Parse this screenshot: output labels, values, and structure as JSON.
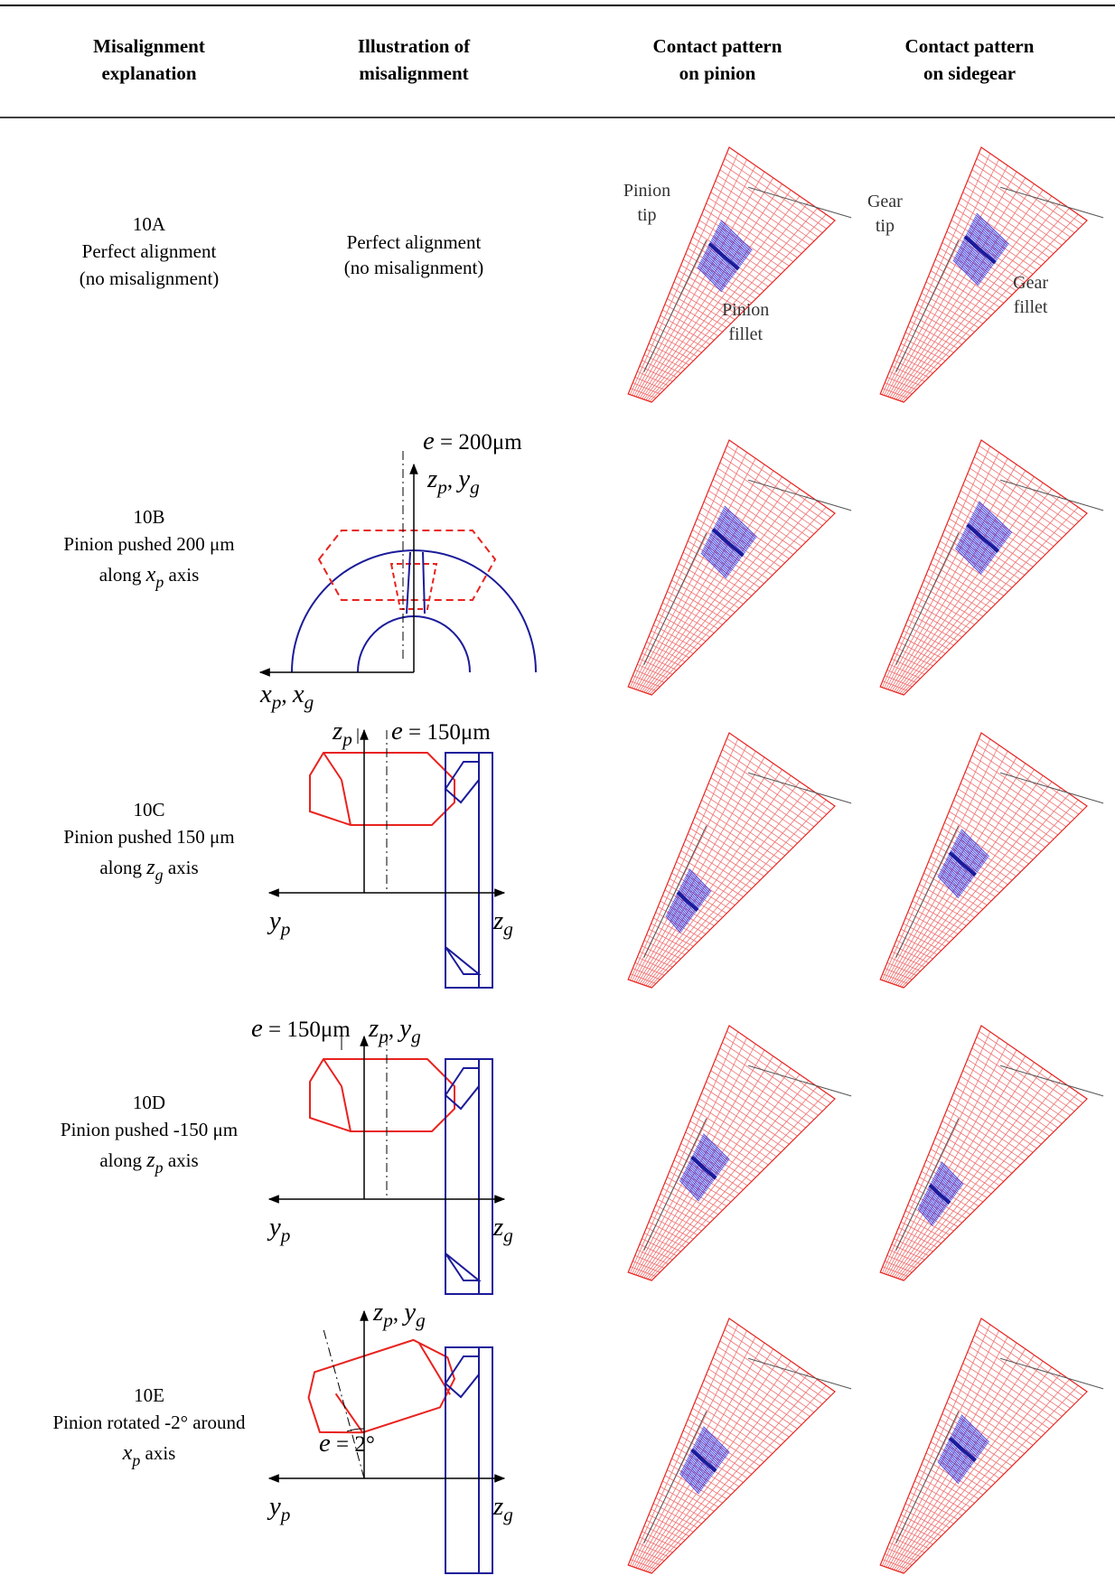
{
  "table": {
    "header": [
      [
        "Misalignment",
        "explanation"
      ],
      [
        "Illustration of",
        "misalignment"
      ],
      [
        "Contact pattern",
        "on pinion"
      ],
      [
        "Contact pattern",
        "on sidegear"
      ]
    ],
    "rows": [
      {
        "id": "10A",
        "explanation": [
          "Perfect alignment",
          "(no misalignment)"
        ],
        "illustration": [
          "Perfect alignment",
          "(no misalignment)"
        ],
        "pinion_labels": [
          [
            "Pinion",
            "tip"
          ],
          [
            "Pinion",
            "fillet"
          ]
        ],
        "gear_labels": [
          [
            "Gear",
            "tip"
          ],
          [
            "Gear",
            "fillet"
          ]
        ]
      },
      {
        "id": "10B",
        "explanation": [
          "Pinion pushed 200 μm"
        ],
        "axis": [
          "along ",
          {
            "v": "x",
            "s": "p"
          },
          " axis"
        ],
        "diagram_labels": [
          [
            {
              "v": "e"
            },
            " = 200μm"
          ],
          [
            {
              "v": "z",
              "s": "p"
            },
            ", ",
            {
              "v": "y",
              "s": "g"
            }
          ],
          [
            {
              "v": "x",
              "s": "p"
            },
            ", ",
            {
              "v": "x",
              "s": "g"
            }
          ]
        ]
      },
      {
        "id": "10C",
        "explanation": [
          "Pinion pushed 150 μm"
        ],
        "axis": [
          "along ",
          {
            "v": "z",
            "s": "g"
          },
          " axis"
        ],
        "diagram_labels": [
          [
            {
              "v": "z",
              "s": "p"
            }
          ],
          [
            {
              "v": "e"
            },
            " = 150μm"
          ],
          [
            {
              "v": "y",
              "s": "p"
            }
          ],
          [
            {
              "v": "z",
              "s": "g"
            }
          ]
        ]
      },
      {
        "id": "10D",
        "explanation": [
          "Pinion pushed -150 μm"
        ],
        "axis": [
          "along ",
          {
            "v": "z",
            "s": "p"
          },
          " axis"
        ],
        "diagram_labels": [
          [
            {
              "v": "e"
            },
            " = 150μm"
          ],
          [
            {
              "v": "z",
              "s": "p"
            },
            ", ",
            {
              "v": "y",
              "s": "g"
            }
          ],
          [
            {
              "v": "y",
              "s": "p"
            }
          ],
          [
            {
              "v": "z",
              "s": "g"
            }
          ]
        ]
      },
      {
        "id": "10E",
        "explanation": [
          "Pinion rotated -2° around"
        ],
        "axis": [
          {
            "v": "x",
            "s": "p"
          },
          " axis"
        ],
        "diagram_labels": [
          [
            {
              "v": "z",
              "s": "p"
            },
            ", ",
            {
              "v": "y",
              "s": "g"
            }
          ],
          [
            {
              "v": "e"
            },
            " = 2°"
          ],
          [
            {
              "v": "y",
              "s": "p"
            }
          ],
          [
            {
              "v": "z",
              "s": "g"
            }
          ]
        ]
      }
    ]
  }
}
